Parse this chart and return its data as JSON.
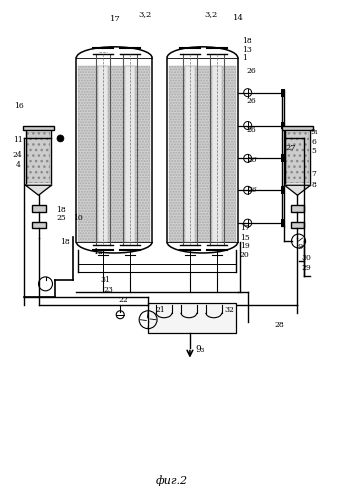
{
  "bg_color": "#ffffff",
  "line_color": "#000000",
  "fig_label": "фиг.2",
  "figsize": [
    3.44,
    5.0
  ],
  "dpi": 100
}
